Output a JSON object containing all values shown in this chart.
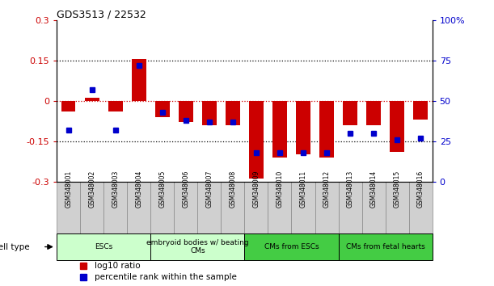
{
  "title": "GDS3513 / 22532",
  "samples": [
    "GSM348001",
    "GSM348002",
    "GSM348003",
    "GSM348004",
    "GSM348005",
    "GSM348006",
    "GSM348007",
    "GSM348008",
    "GSM348009",
    "GSM348010",
    "GSM348011",
    "GSM348012",
    "GSM348013",
    "GSM348014",
    "GSM348015",
    "GSM348016"
  ],
  "log10_ratio": [
    -0.04,
    0.01,
    -0.04,
    0.155,
    -0.06,
    -0.08,
    -0.09,
    -0.09,
    -0.29,
    -0.21,
    -0.2,
    -0.21,
    -0.09,
    -0.09,
    -0.19,
    -0.07
  ],
  "percentile_rank": [
    32,
    57,
    32,
    72,
    43,
    38,
    37,
    37,
    18,
    18,
    18,
    18,
    30,
    30,
    26,
    27
  ],
  "ylim_left": [
    -0.3,
    0.3
  ],
  "ylim_right": [
    0,
    100
  ],
  "yticks_left": [
    -0.3,
    -0.15,
    0,
    0.15,
    0.3
  ],
  "yticks_right": [
    0,
    25,
    50,
    75,
    100
  ],
  "ytick_labels_left": [
    "-0.3",
    "-0.15",
    "0",
    "0.15",
    "0.3"
  ],
  "ytick_labels_right": [
    "0",
    "25",
    "50",
    "75",
    "100%"
  ],
  "dotted_lines": [
    -0.15,
    0.15
  ],
  "bar_color_red": "#CC0000",
  "bar_color_blue": "#0000CC",
  "cell_type_groups": [
    {
      "label": "ESCs",
      "start": 0,
      "end": 3,
      "color": "#ccffcc"
    },
    {
      "label": "embryoid bodies w/ beating\nCMs",
      "start": 4,
      "end": 7,
      "color": "#ccffcc"
    },
    {
      "label": "CMs from ESCs",
      "start": 8,
      "end": 11,
      "color": "#44cc44"
    },
    {
      "label": "CMs from fetal hearts",
      "start": 12,
      "end": 15,
      "color": "#44cc44"
    }
  ],
  "cell_type_label": "cell type",
  "legend_red": "log10 ratio",
  "legend_blue": "percentile rank within the sample",
  "background_color": "#ffffff",
  "plot_bg": "#ffffff",
  "gray_box_color": "#d0d0d0",
  "gray_box_edge": "#888888"
}
